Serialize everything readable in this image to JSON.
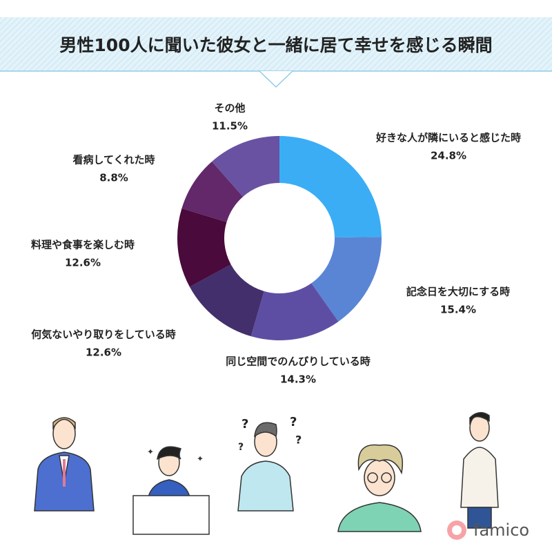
{
  "chart_data": {
    "type": "donut",
    "title": "男性100人に聞いた彼女と一緒に居て幸せを感じる瞬間",
    "categories": [
      "好きな人が隣にいると感じた時",
      "記念日を大切にする時",
      "同じ空間でのんびりしている時",
      "何気ないやり取りをしている時",
      "料理や食事を楽しむ時",
      "看病してくれた時",
      "その他"
    ],
    "values": [
      24.8,
      15.4,
      14.3,
      12.6,
      12.6,
      8.8,
      11.5
    ],
    "value_labels": [
      "24.8%",
      "15.4%",
      "14.3%",
      "12.6%",
      "12.6%",
      "8.8%",
      "11.5%"
    ],
    "colors": [
      "#3badf5",
      "#5a85d5",
      "#5e4ea3",
      "#432f6c",
      "#4a0a3b",
      "#62286a",
      "#6a52a2"
    ]
  },
  "logo": "famico"
}
